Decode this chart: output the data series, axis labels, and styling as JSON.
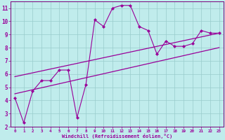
{
  "xlabel": "Windchill (Refroidissement éolien,°C)",
  "bg_color": "#c0ecec",
  "line_color": "#990099",
  "grid_color": "#99cccc",
  "spine_color": "#7a007a",
  "xlim": [
    -0.5,
    23.5
  ],
  "ylim": [
    2,
    11.5
  ],
  "xtick_labels": [
    "0",
    "1",
    "2",
    "3",
    "4",
    "5",
    "6",
    "7",
    "8",
    "9",
    "10",
    "11",
    "12",
    "13",
    "14",
    "15",
    "16",
    "17",
    "18",
    "19",
    "20",
    "21",
    "22",
    "23"
  ],
  "ytick_labels": [
    "2",
    "3",
    "4",
    "5",
    "6",
    "7",
    "8",
    "9",
    "10",
    "11"
  ],
  "ytick_vals": [
    2,
    3,
    4,
    5,
    6,
    7,
    8,
    9,
    10,
    11
  ],
  "curve1_x": [
    0,
    1,
    2,
    3,
    4,
    5,
    6,
    7,
    8,
    9,
    10,
    11,
    12,
    13,
    14,
    15,
    16,
    17,
    18,
    19,
    20,
    21,
    22,
    23
  ],
  "curve1_y": [
    4.2,
    2.3,
    4.7,
    5.5,
    5.5,
    6.3,
    6.3,
    2.7,
    5.2,
    10.1,
    9.6,
    11.0,
    11.2,
    11.2,
    9.6,
    9.3,
    7.5,
    8.5,
    8.1,
    8.1,
    8.3,
    9.3,
    9.1,
    9.1
  ],
  "line1_x": [
    0,
    23
  ],
  "line1_y": [
    4.5,
    8.0
  ],
  "line2_x": [
    0,
    23
  ],
  "line2_y": [
    5.8,
    9.1
  ]
}
